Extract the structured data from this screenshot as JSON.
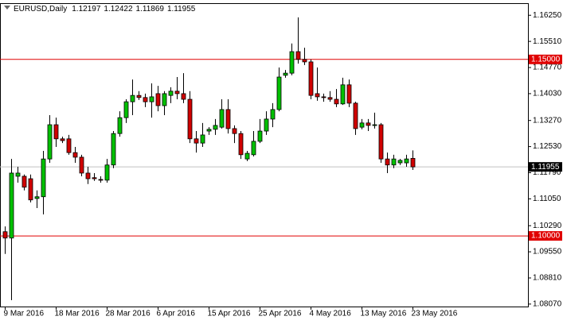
{
  "chart_data": {
    "type": "candlestick",
    "symbol": "EURUSD,Daily",
    "categories": [
      "9 Mar 2016",
      null,
      null,
      null,
      null,
      null,
      null,
      null,
      "18 Mar 2016",
      null,
      null,
      null,
      null,
      null,
      null,
      null,
      "28 Mar 2016",
      null,
      null,
      null,
      null,
      null,
      null,
      null,
      "6 Apr 2016",
      null,
      null,
      null,
      null,
      null,
      null,
      null,
      "15 Apr 2016",
      null,
      null,
      null,
      null,
      null,
      null,
      null,
      "25 Apr 2016",
      null,
      null,
      null,
      null,
      null,
      null,
      null,
      "4 May 2016",
      null,
      null,
      null,
      null,
      null,
      null,
      null,
      "13 May 2016",
      null,
      null,
      null,
      null,
      null,
      null,
      null,
      "23 May 2016"
    ],
    "open": [
      1.1012,
      1.0994,
      1.1169,
      1.1169,
      1.1162,
      1.1106,
      1.1111,
      1.1218,
      1.1315,
      1.1275,
      1.1275,
      1.1236,
      1.1223,
      1.1178,
      1.1165,
      1.116,
      1.1158,
      1.1201,
      1.129,
      1.1335,
      1.138,
      1.1398,
      1.1392,
      1.138,
      1.1403,
      1.1369,
      1.1398,
      1.141,
      1.1403,
      1.1387,
      1.1275,
      1.1263,
      1.1297,
      1.1302,
      1.1308,
      1.1358,
      1.1304,
      1.129,
      1.1218,
      1.123,
      1.1268,
      1.1297,
      1.1331,
      1.1358,
      1.1455,
      1.1461,
      1.1522,
      1.15,
      1.1493,
      1.1403,
      1.1394,
      1.1392,
      1.1387,
      1.1374,
      1.1428,
      1.1376,
      1.1308,
      1.132,
      1.1313,
      1.1315,
      1.1218,
      1.1201,
      1.1207,
      1.1207,
      1.12197
    ],
    "high": [
      1.1027,
      1.1218,
      1.1196,
      1.1174,
      1.1174,
      1.1129,
      1.1241,
      1.1342,
      1.1335,
      1.1281,
      1.1286,
      1.1252,
      1.123,
      1.1196,
      1.1178,
      1.1169,
      1.1218,
      1.1297,
      1.1353,
      1.1387,
      1.1443,
      1.141,
      1.1403,
      1.1432,
      1.1425,
      1.141,
      1.1421,
      1.145,
      1.1461,
      1.141,
      1.1297,
      1.132,
      1.1308,
      1.1331,
      1.1387,
      1.1387,
      1.1313,
      1.1297,
      1.1241,
      1.1297,
      1.1331,
      1.1353,
      1.1376,
      1.1477,
      1.147,
      1.1545,
      1.1619,
      1.1533,
      1.15,
      1.1477,
      1.1403,
      1.141,
      1.1416,
      1.1448,
      1.1443,
      1.138,
      1.1331,
      1.1331,
      1.1349,
      1.132,
      1.1236,
      1.123,
      1.1218,
      1.123,
      1.12422
    ],
    "low": [
      1.0949,
      1.0818,
      1.1151,
      1.1129,
      1.1095,
      1.1079,
      1.1061,
      1.1207,
      1.1252,
      1.1263,
      1.123,
      1.1207,
      1.1169,
      1.1147,
      1.1156,
      1.1151,
      1.1151,
      1.1192,
      1.1281,
      1.132,
      1.1342,
      1.1385,
      1.1365,
      1.1335,
      1.1353,
      1.1342,
      1.1376,
      1.1387,
      1.1376,
      1.1263,
      1.1236,
      1.1252,
      1.1286,
      1.1286,
      1.1304,
      1.129,
      1.1263,
      1.1218,
      1.1212,
      1.1225,
      1.1263,
      1.1286,
      1.1308,
      1.1353,
      1.1448,
      1.1455,
      1.1488,
      1.1484,
      1.1387,
      1.1383,
      1.138,
      1.138,
      1.1365,
      1.1371,
      1.1365,
      1.1286,
      1.1302,
      1.1297,
      1.1304,
      1.1207,
      1.1178,
      1.1192,
      1.1201,
      1.1196,
      1.11869
    ],
    "close": [
      1.0994,
      1.1178,
      1.1178,
      1.1138,
      1.1102,
      1.1111,
      1.1218,
      1.1315,
      1.1275,
      1.127,
      1.1236,
      1.1223,
      1.1178,
      1.1162,
      1.1162,
      1.1158,
      1.1201,
      1.129,
      1.1335,
      1.138,
      1.1398,
      1.1392,
      1.138,
      1.1394,
      1.1369,
      1.1403,
      1.141,
      1.1403,
      1.1387,
      1.1275,
      1.1263,
      1.1286,
      1.1302,
      1.1313,
      1.1358,
      1.1304,
      1.129,
      1.123,
      1.1234,
      1.1268,
      1.1297,
      1.1331,
      1.1358,
      1.145,
      1.1461,
      1.1522,
      1.15,
      1.1493,
      1.1398,
      1.1394,
      1.1392,
      1.1387,
      1.1374,
      1.1428,
      1.1376,
      1.1304,
      1.132,
      1.1313,
      1.1315,
      1.1218,
      1.1201,
      1.1218,
      1.1214,
      1.1218,
      1.11955
    ],
    "up_color": "#00c000",
    "down_color": "#d00000",
    "ylim": [
      1.08,
      1.1657
    ],
    "yticks": [
      {
        "value": 1.1625,
        "label": "1.16250"
      },
      {
        "value": 1.1551,
        "label": "1.15510"
      },
      {
        "value": 1.1477,
        "label": "1.14770"
      },
      {
        "value": 1.1403,
        "label": "1.14030"
      },
      {
        "value": 1.1327,
        "label": "1.13270"
      },
      {
        "value": 1.1253,
        "label": "1.12530"
      },
      {
        "value": 1.1179,
        "label": "1.11790"
      },
      {
        "value": 1.1105,
        "label": "1.11050"
      },
      {
        "value": 1.1029,
        "label": "1.10290"
      },
      {
        "value": 1.0955,
        "label": "1.09550"
      },
      {
        "value": 1.0881,
        "label": "1.08810"
      },
      {
        "value": 1.0807,
        "label": "1.08070"
      }
    ],
    "levels": [
      {
        "value": 1.15,
        "label": "1.15000"
      },
      {
        "value": 1.1,
        "label": "1.10000"
      }
    ],
    "level_color": "#e00000"
  }
}
